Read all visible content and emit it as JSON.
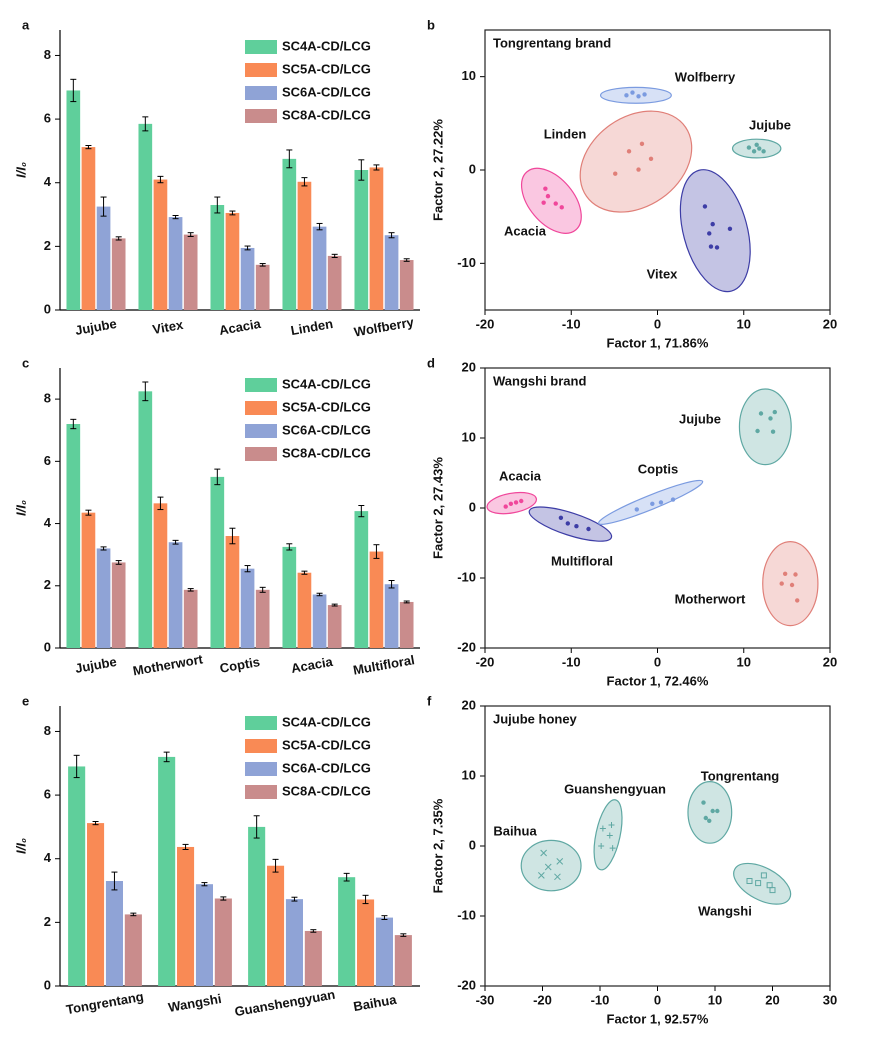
{
  "chart_data": [
    {
      "panel": "a",
      "type": "bar",
      "ylabel": "I/I₀",
      "legend": "upper right",
      "categories": [
        "Jujube",
        "Vitex",
        "Acacia",
        "Linden",
        "Wolfberry"
      ],
      "ylim": [
        0,
        8.8
      ],
      "yticks": [
        0,
        2,
        4,
        6,
        8
      ],
      "series": [
        {
          "name": "SC4A-CD/LCG",
          "color": "#5fcf9b",
          "values": [
            6.9,
            5.85,
            3.3,
            4.75,
            4.4
          ],
          "errors": [
            0.35,
            0.22,
            0.25,
            0.28,
            0.32
          ]
        },
        {
          "name": "SC5A-CD/LCG",
          "color": "#f98a55",
          "values": [
            5.12,
            4.1,
            3.05,
            4.03,
            4.48
          ],
          "errors": [
            0.05,
            0.1,
            0.06,
            0.13,
            0.08
          ]
        },
        {
          "name": "SC6A-CD/LCG",
          "color": "#8fa3d6",
          "values": [
            3.25,
            2.92,
            1.95,
            2.62,
            2.35
          ],
          "errors": [
            0.3,
            0.05,
            0.06,
            0.1,
            0.08
          ]
        },
        {
          "name": "SC8A-CD/LCG",
          "color": "#c98c8c",
          "values": [
            2.25,
            2.37,
            1.42,
            1.7,
            1.57
          ],
          "errors": [
            0.05,
            0.06,
            0.04,
            0.05,
            0.04
          ]
        }
      ]
    },
    {
      "panel": "b",
      "type": "scatter",
      "title": "Tongrentang brand",
      "xlabel": "Factor 1, 71.86%",
      "ylabel": "Factor 2, 27.22%",
      "xlim": [
        -20,
        20
      ],
      "xticks": [
        -20,
        -10,
        0,
        10,
        20
      ],
      "ylim": [
        -15,
        15
      ],
      "yticks": [
        -10,
        0,
        10
      ],
      "groups": [
        {
          "name": "Wolfberry",
          "color": "#7b9be0",
          "marker": "circle",
          "x": [
            -3.6,
            -2.9,
            -2.2,
            -1.5
          ],
          "y": [
            8.0,
            8.3,
            7.9,
            8.1
          ],
          "ellipse": {
            "cx": -2.5,
            "cy": 8.0,
            "rx": 4.1,
            "ry": 0.85,
            "angle": 0
          }
        },
        {
          "name": "Jujube",
          "color": "#5fa8a3",
          "marker": "circle",
          "x": [
            10.6,
            11.2,
            11.8,
            12.3,
            11.5
          ],
          "y": [
            2.4,
            2.0,
            2.3,
            2.0,
            2.7
          ],
          "ellipse": {
            "cx": 11.5,
            "cy": 2.3,
            "rx": 2.8,
            "ry": 1.0,
            "angle": 0
          }
        },
        {
          "name": "Linden",
          "color": "#e07f78",
          "marker": "circle",
          "x": [
            -3.3,
            -1.8,
            -0.75,
            -4.9,
            -2.2
          ],
          "y": [
            2.0,
            2.8,
            1.2,
            -0.4,
            0.05
          ],
          "ellipse": {
            "cx": -2.5,
            "cy": 0.9,
            "rx": 7.0,
            "ry": 4.8,
            "angle": -35
          }
        },
        {
          "name": "Acacia",
          "color": "#f0479b",
          "marker": "circle",
          "x": [
            -13.0,
            -12.7,
            -11.8,
            -13.2,
            -11.1
          ],
          "y": [
            -2.0,
            -2.8,
            -3.6,
            -3.5,
            -4.0
          ],
          "ellipse": {
            "cx": -12.3,
            "cy": -3.3,
            "rx": 4.4,
            "ry": 2.4,
            "angle": 50
          }
        },
        {
          "name": "Vitex",
          "color": "#3d3da6",
          "marker": "circle",
          "x": [
            5.5,
            6.4,
            8.4,
            6.2,
            6.9,
            6.0
          ],
          "y": [
            -3.9,
            -5.8,
            -6.3,
            -8.2,
            -8.3,
            -6.8
          ],
          "ellipse": {
            "cx": 6.7,
            "cy": -6.5,
            "rx": 3.7,
            "ry": 6.7,
            "angle": -15
          }
        }
      ]
    },
    {
      "panel": "c",
      "type": "bar",
      "ylabel": "I/I₀",
      "legend": "upper right",
      "categories": [
        "Jujube",
        "Motherwort",
        "Coptis",
        "Acacia",
        "Multifloral"
      ],
      "ylim": [
        0,
        9
      ],
      "yticks": [
        0,
        2,
        4,
        6,
        8
      ],
      "series": [
        {
          "name": "SC4A-CD/LCG",
          "color": "#5fcf9b",
          "values": [
            7.2,
            8.25,
            5.5,
            3.25,
            4.4
          ],
          "errors": [
            0.15,
            0.3,
            0.25,
            0.1,
            0.18
          ]
        },
        {
          "name": "SC5A-CD/LCG",
          "color": "#f98a55",
          "values": [
            4.35,
            4.65,
            3.6,
            2.42,
            3.1
          ],
          "errors": [
            0.08,
            0.2,
            0.25,
            0.05,
            0.22
          ]
        },
        {
          "name": "SC6A-CD/LCG",
          "color": "#8fa3d6",
          "values": [
            3.2,
            3.4,
            2.55,
            1.72,
            2.05
          ],
          "errors": [
            0.05,
            0.06,
            0.1,
            0.04,
            0.12
          ]
        },
        {
          "name": "SC8A-CD/LCG",
          "color": "#c98c8c",
          "values": [
            2.75,
            1.87,
            1.87,
            1.38,
            1.48
          ],
          "errors": [
            0.06,
            0.04,
            0.08,
            0.03,
            0.03
          ]
        }
      ]
    },
    {
      "panel": "d",
      "type": "scatter",
      "title": "Wangshi brand",
      "xlabel": "Factor 1, 72.46%",
      "ylabel": "Factor 2, 27.43%",
      "xlim": [
        -20,
        20
      ],
      "xticks": [
        -20,
        -10,
        0,
        10,
        20
      ],
      "ylim": [
        -20,
        20
      ],
      "yticks": [
        -20,
        -10,
        0,
        10,
        20
      ],
      "groups": [
        {
          "name": "Jujube",
          "color": "#5fa8a3",
          "marker": "circle",
          "x": [
            12.0,
            13.6,
            11.6,
            13.4,
            13.1
          ],
          "y": [
            13.5,
            13.7,
            11.0,
            10.9,
            12.8
          ],
          "ellipse": {
            "cx": 12.5,
            "cy": 11.6,
            "rx": 3.0,
            "ry": 5.4,
            "angle": 0
          }
        },
        {
          "name": "Motherwort",
          "color": "#e07f78",
          "marker": "circle",
          "x": [
            14.8,
            16.0,
            14.4,
            15.6,
            16.2
          ],
          "y": [
            -9.4,
            -9.5,
            -10.8,
            -11.0,
            -13.2
          ],
          "ellipse": {
            "cx": 15.4,
            "cy": -10.8,
            "rx": 3.2,
            "ry": 6.0,
            "angle": 0
          }
        },
        {
          "name": "Acacia",
          "color": "#f0479b",
          "marker": "circle",
          "x": [
            -17.6,
            -17.0,
            -16.4,
            -15.8
          ],
          "y": [
            0.2,
            0.6,
            0.8,
            1.0
          ],
          "ellipse": {
            "cx": -16.9,
            "cy": 0.7,
            "rx": 2.9,
            "ry": 1.4,
            "angle": -10
          }
        },
        {
          "name": "Multifloral",
          "color": "#3d3da6",
          "marker": "circle",
          "x": [
            -11.2,
            -10.4,
            -9.4,
            -8.0
          ],
          "y": [
            -1.4,
            -2.2,
            -2.6,
            -3.0
          ],
          "ellipse": {
            "cx": -10.1,
            "cy": -2.3,
            "rx": 5.0,
            "ry": 1.6,
            "angle": 18
          }
        },
        {
          "name": "Coptis",
          "color": "#7b9be0",
          "marker": "circle",
          "x": [
            -2.4,
            -0.6,
            0.4,
            1.8
          ],
          "y": [
            -0.2,
            0.6,
            0.8,
            1.2
          ],
          "ellipse": {
            "cx": -0.8,
            "cy": 0.8,
            "rx": 6.5,
            "ry": 1.0,
            "angle": -22
          }
        }
      ]
    },
    {
      "panel": "e",
      "type": "bar",
      "ylabel": "I/I₀",
      "legend": "upper right",
      "categories": [
        "Tongrentang",
        "Wangshi",
        "Guanshengyuan",
        "Baihua"
      ],
      "ylim": [
        0,
        8.8
      ],
      "yticks": [
        0,
        2,
        4,
        6,
        8
      ],
      "series": [
        {
          "name": "SC4A-CD/LCG",
          "color": "#5fcf9b",
          "values": [
            6.9,
            7.2,
            5.0,
            3.42
          ],
          "errors": [
            0.35,
            0.15,
            0.35,
            0.12
          ]
        },
        {
          "name": "SC5A-CD/LCG",
          "color": "#f98a55",
          "values": [
            5.12,
            4.37,
            3.78,
            2.72
          ],
          "errors": [
            0.05,
            0.08,
            0.2,
            0.13
          ]
        },
        {
          "name": "SC6A-CD/LCG",
          "color": "#8fa3d6",
          "values": [
            3.3,
            3.2,
            2.73,
            2.15
          ],
          "errors": [
            0.28,
            0.05,
            0.06,
            0.06
          ]
        },
        {
          "name": "SC8A-CD/LCG",
          "color": "#c98c8c",
          "values": [
            2.25,
            2.75,
            1.73,
            1.6
          ],
          "errors": [
            0.04,
            0.05,
            0.04,
            0.04
          ]
        }
      ]
    },
    {
      "panel": "f",
      "type": "scatter",
      "title": "Jujube honey",
      "xlabel": "Factor 1, 92.57%",
      "ylabel": "Factor 2, 7.35%",
      "xlim": [
        -30,
        30
      ],
      "xticks": [
        -30,
        -20,
        -10,
        0,
        10,
        20,
        30
      ],
      "ylim": [
        -20,
        20
      ],
      "yticks": [
        -20,
        -10,
        0,
        10,
        20
      ],
      "groups": [
        {
          "name": "Tongrentang",
          "color": "#5fa8a3",
          "marker": "circle",
          "x": [
            8.0,
            9.6,
            10.4,
            8.4,
            9.0
          ],
          "y": [
            6.2,
            5.0,
            5.0,
            4.0,
            3.6
          ],
          "ellipse": {
            "cx": 9.1,
            "cy": 4.8,
            "rx": 3.8,
            "ry": 4.4,
            "angle": 0
          }
        },
        {
          "name": "Wangshi",
          "color": "#5fa8a3",
          "marker": "square",
          "x": [
            16.0,
            17.5,
            18.5,
            19.5,
            20.0
          ],
          "y": [
            -5.0,
            -5.3,
            -4.2,
            -5.6,
            -6.3
          ],
          "ellipse": {
            "cx": 18.2,
            "cy": -5.4,
            "rx": 5.4,
            "ry": 2.3,
            "angle": 28
          }
        },
        {
          "name": "Guanshengyuan",
          "color": "#5fa8a3",
          "marker": "plus",
          "x": [
            -9.5,
            -8.0,
            -8.3,
            -9.8,
            -7.8
          ],
          "y": [
            2.5,
            3.0,
            1.5,
            0.0,
            -0.3
          ],
          "ellipse": {
            "cx": -8.6,
            "cy": 1.6,
            "rx": 2.1,
            "ry": 5.1,
            "angle": 12
          }
        },
        {
          "name": "Baihua",
          "color": "#5fa8a3",
          "marker": "x",
          "x": [
            -19.8,
            -17.0,
            -20.2,
            -17.4,
            -19.0
          ],
          "y": [
            -1.0,
            -2.2,
            -4.2,
            -4.4,
            -3.0
          ],
          "ellipse": {
            "cx": -18.5,
            "cy": -2.8,
            "rx": 5.2,
            "ry": 3.6,
            "angle": 0
          }
        }
      ]
    }
  ]
}
